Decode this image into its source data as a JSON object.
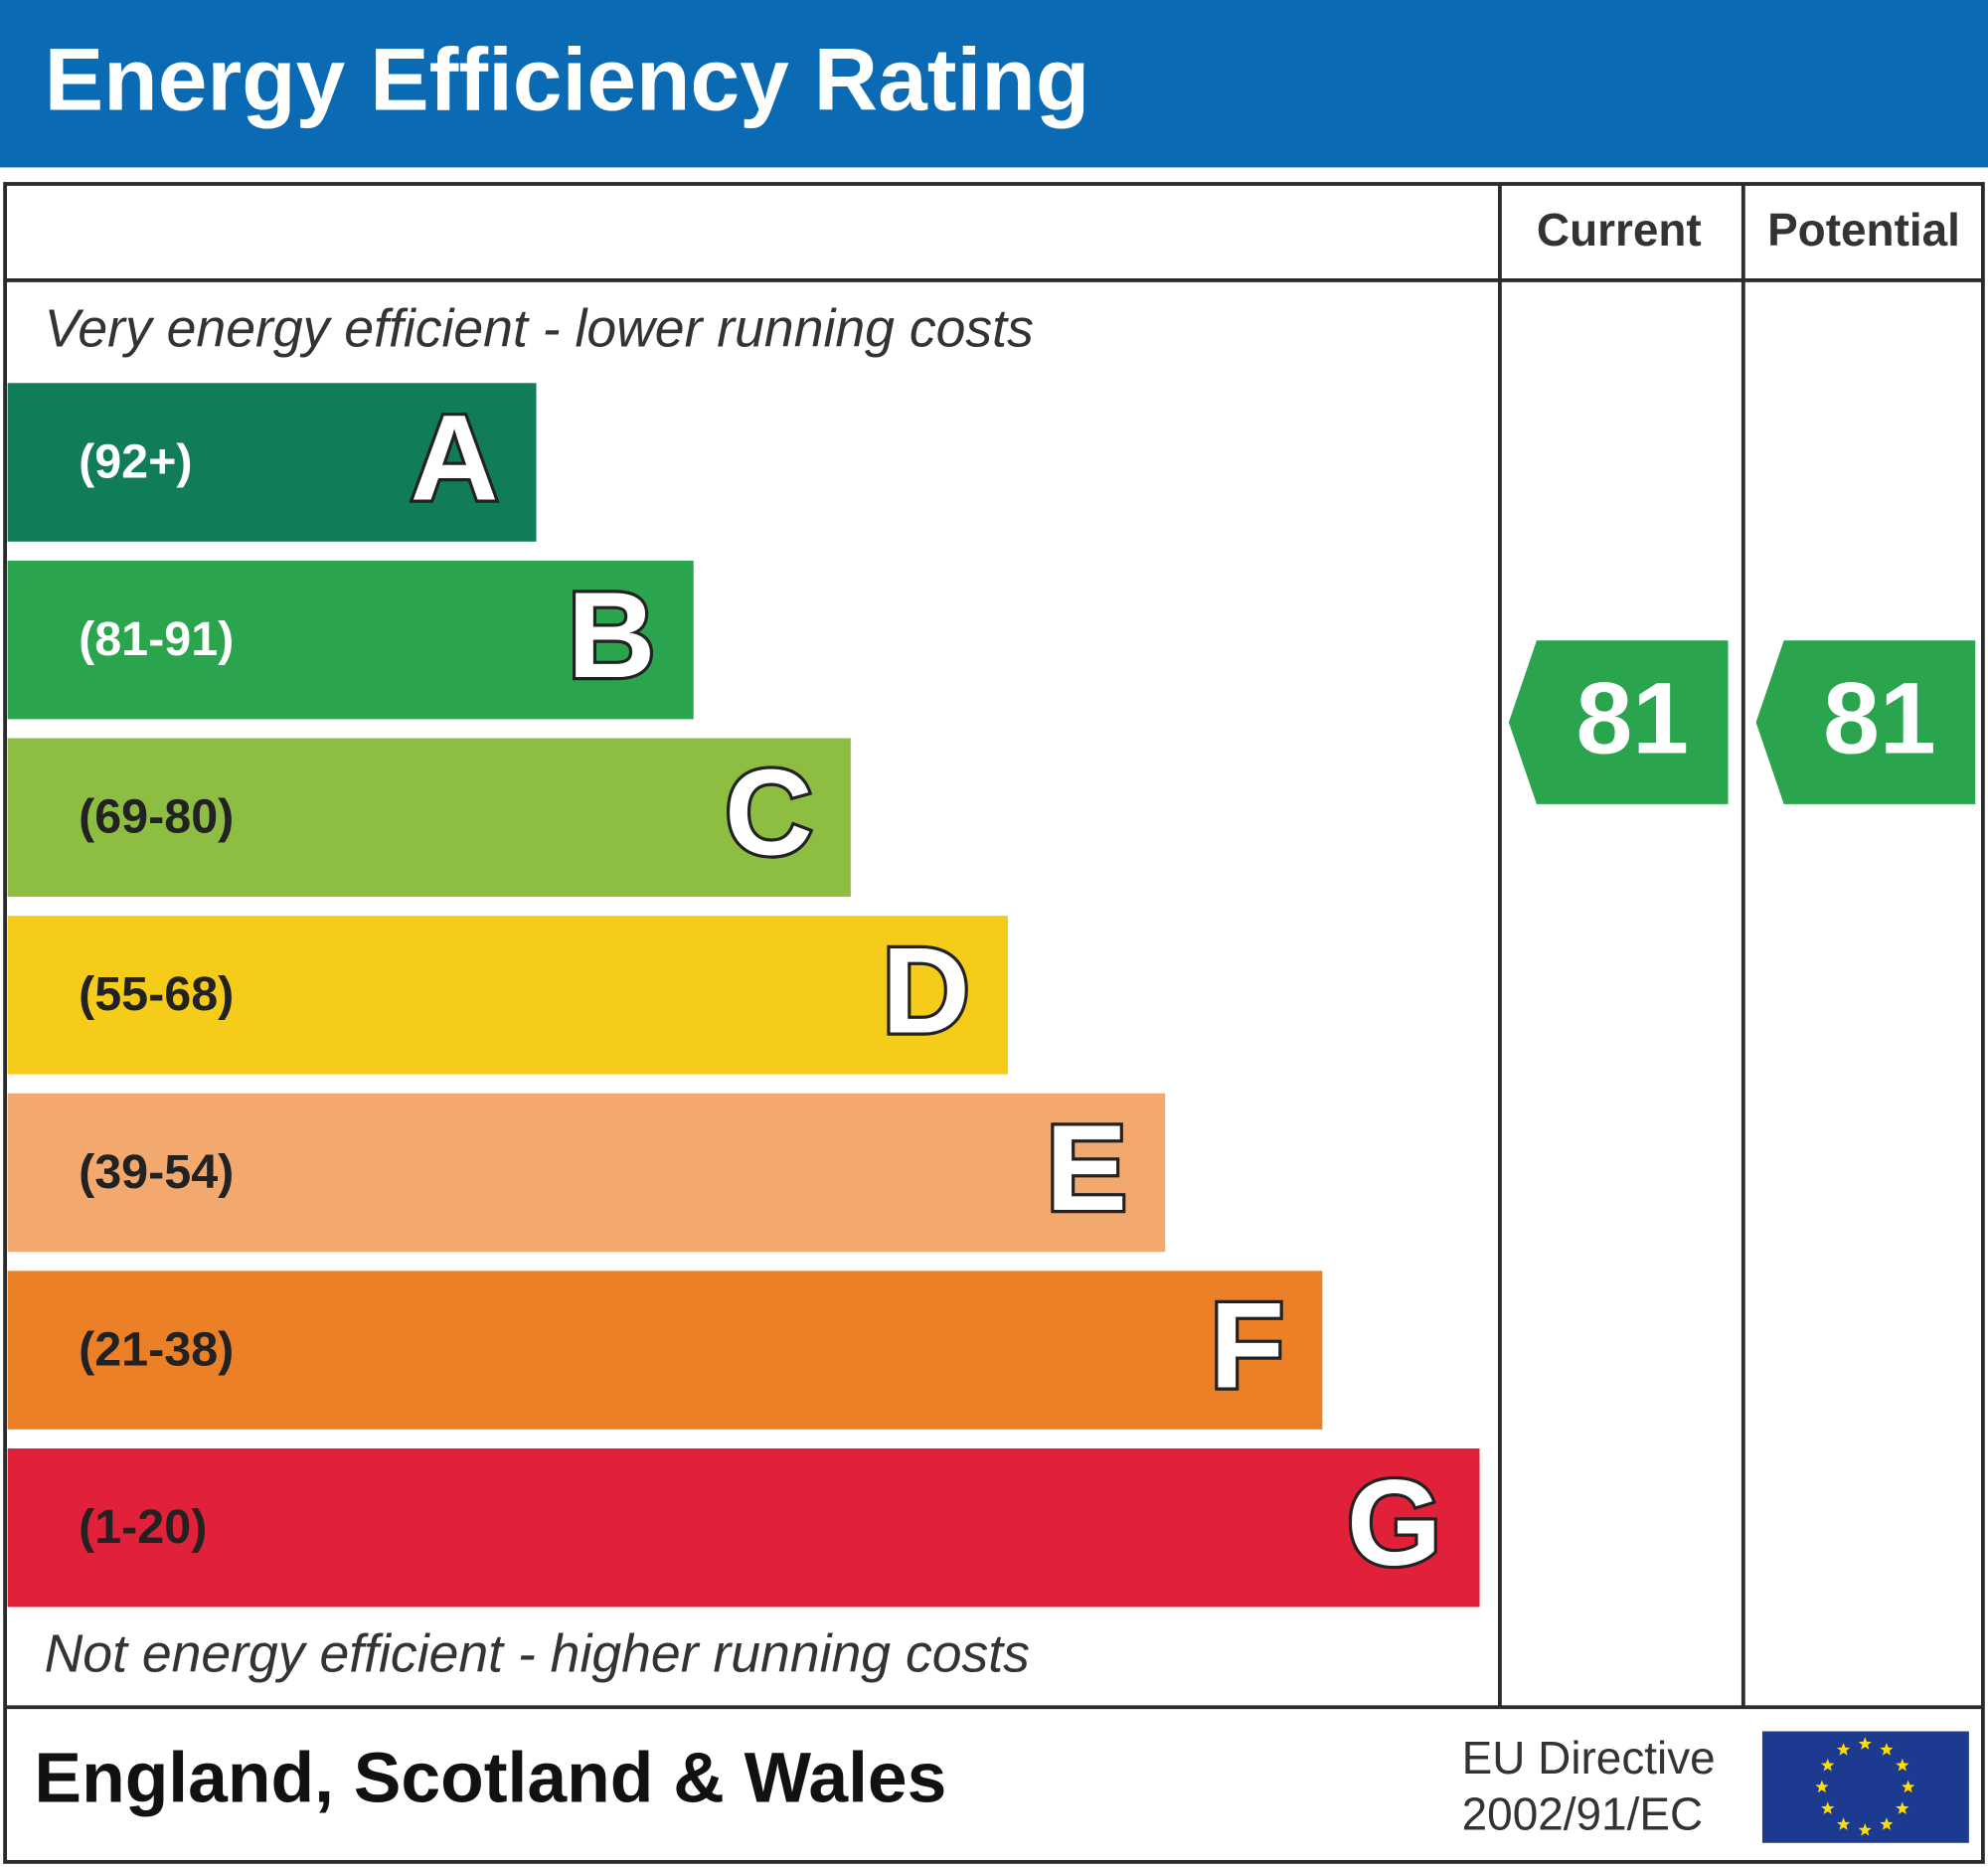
{
  "header": {
    "title": "Energy Efficiency Rating"
  },
  "columns": {
    "current": "Current",
    "potential": "Potential"
  },
  "top_note": "Very energy efficient - lower running costs",
  "bottom_note": "Not energy efficient - higher running costs",
  "bands": [
    {
      "range": "(92+)",
      "letter": "A",
      "color": "#117d57"
    },
    {
      "range": "(81-91)",
      "letter": "B",
      "color": "#2aa44d"
    },
    {
      "range": "(69-80)",
      "letter": "C",
      "color": "#8dbd41"
    },
    {
      "range": "(55-68)",
      "letter": "D",
      "color": "#f6cc1a"
    },
    {
      "range": "(39-54)",
      "letter": "E",
      "color": "#f3a96d"
    },
    {
      "range": "(21-38)",
      "letter": "F",
      "color": "#ec8027"
    },
    {
      "range": "(1-20)",
      "letter": "G",
      "color": "#e1213a"
    }
  ],
  "ratings": {
    "current": "81",
    "potential": "81"
  },
  "footer": {
    "region": "England, Scotland & Wales",
    "directive": [
      "EU Directive",
      "2002/91/EC"
    ]
  }
}
